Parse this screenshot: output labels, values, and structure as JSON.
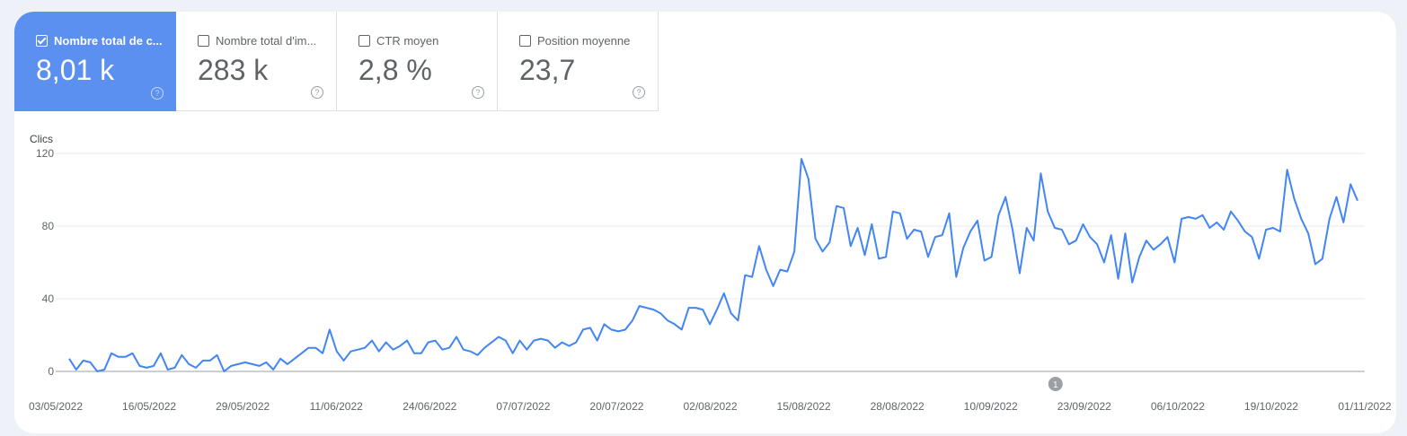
{
  "metrics": [
    {
      "label": "Nombre total de c...",
      "value": "8,01 k",
      "checked": true,
      "help_icon": "question-circle-icon"
    },
    {
      "label": "Nombre total d'im...",
      "value": "283 k",
      "checked": false,
      "help_icon": "question-circle-icon"
    },
    {
      "label": "CTR moyen",
      "value": "2,8 %",
      "checked": false,
      "help_icon": "question-circle-icon"
    },
    {
      "label": "Position moyenne",
      "value": "23,7",
      "checked": false,
      "help_icon": "question-circle-icon"
    }
  ],
  "colors": {
    "accent": "#5b8ff0",
    "line": "#4285f4",
    "background": "#eef2f8"
  },
  "annotation": {
    "label": "1",
    "date": "2022-09-19"
  },
  "chart_data": {
    "type": "line",
    "title": "",
    "ylabel": "Clics",
    "xlabel": "",
    "ylim": [
      0,
      120
    ],
    "yticks": [
      0,
      40,
      80,
      120
    ],
    "x_tick_labels": [
      "03/05/2022",
      "16/05/2022",
      "29/05/2022",
      "11/06/2022",
      "24/06/2022",
      "07/07/2022",
      "20/07/2022",
      "02/08/2022",
      "15/08/2022",
      "28/08/2022",
      "10/09/2022",
      "23/09/2022",
      "06/10/2022",
      "19/10/2022",
      "01/11/2022"
    ],
    "grid": true,
    "x_start": "03/05/2022",
    "x_end": "01/11/2022",
    "series": [
      {
        "values": [
          7,
          1,
          6,
          5,
          0,
          1,
          10,
          8,
          8,
          10,
          3,
          2,
          3,
          10,
          1,
          2,
          9,
          4,
          2,
          6,
          6,
          9,
          0,
          3,
          4,
          5,
          4,
          3,
          5,
          1,
          7,
          4,
          7,
          10,
          13,
          13,
          10,
          23,
          11,
          6,
          11,
          12,
          13,
          17,
          11,
          16,
          12,
          14,
          17,
          10,
          10,
          16,
          17,
          12,
          13,
          19,
          12,
          11,
          9,
          13,
          16,
          19,
          17,
          10,
          17,
          12,
          17,
          18,
          17,
          13,
          16,
          14,
          16,
          23,
          24,
          17,
          26,
          23,
          22,
          23,
          28,
          36,
          35,
          34,
          32,
          28,
          26,
          23,
          35,
          35,
          34,
          26,
          34,
          43,
          32,
          28,
          53,
          52,
          69,
          56,
          47,
          56,
          55,
          66,
          117,
          106,
          73,
          66,
          71,
          91,
          90,
          69,
          79,
          64,
          81,
          62,
          63,
          88,
          87,
          73,
          78,
          77,
          63,
          74,
          75,
          87,
          52,
          68,
          77,
          83,
          61,
          63,
          86,
          96,
          78,
          54,
          79,
          72,
          109,
          88,
          79,
          78,
          70,
          72,
          81,
          74,
          70,
          60,
          75,
          51,
          76,
          49,
          63,
          72,
          67,
          70,
          74,
          60,
          84,
          85,
          84,
          86,
          79,
          82,
          78,
          88,
          83,
          77,
          74,
          62,
          78,
          79,
          77,
          111,
          95,
          84,
          76,
          59,
          62,
          84,
          96,
          82,
          103,
          94
        ]
      }
    ]
  }
}
